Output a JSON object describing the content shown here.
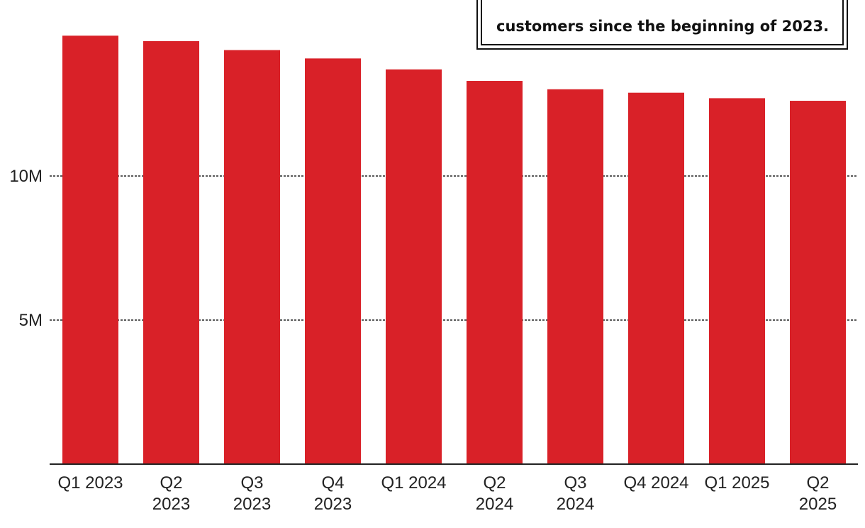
{
  "chart_data": {
    "type": "bar",
    "categories": [
      "Q1 2023",
      "Q2 2023",
      "Q3 2023",
      "Q4 2023",
      "Q1 2024",
      "Q2 2024",
      "Q3 2024",
      "Q4 2024",
      "Q1 2025",
      "Q2 2025"
    ],
    "category_lines": [
      [
        "Q1 2023"
      ],
      [
        "Q2",
        "2023"
      ],
      [
        "Q3",
        "2023"
      ],
      [
        "Q4",
        "2023"
      ],
      [
        "Q1 2024"
      ],
      [
        "Q2",
        "2024"
      ],
      [
        "Q3",
        "2024"
      ],
      [
        "Q4 2024"
      ],
      [
        "Q1 2025"
      ],
      [
        "Q2",
        "2025"
      ]
    ],
    "values": [
      14870000,
      14680000,
      14370000,
      14080000,
      13700000,
      13300000,
      13010000,
      12890000,
      12700000,
      12610000
    ],
    "yticks": [
      {
        "value": 5000000,
        "label": "5M"
      },
      {
        "value": 10000000,
        "label": "10M"
      }
    ],
    "ylim": [
      0,
      15500000
    ],
    "bar_color": "#d92128",
    "grid": "dashed horizontal at ticks",
    "title": "",
    "xlabel": "",
    "ylabel": ""
  },
  "callout": {
    "last_line": "customers since the beginning of 2023."
  }
}
